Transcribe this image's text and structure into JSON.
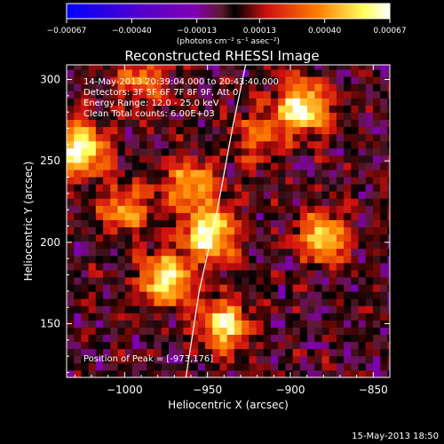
{
  "chart_data": {
    "type": "heatmap",
    "title": "Reconstructed RHESSI Image",
    "xlabel": "Heliocentric X (arcsec)",
    "ylabel": "Heliocentric Y (arcsec)",
    "xlim": [
      -1035,
      -840
    ],
    "ylim": [
      117,
      309
    ],
    "xticks": [
      -1000,
      -950,
      -900,
      -850
    ],
    "xtick_labels": [
      "−1000",
      "−950",
      "−900",
      "−850"
    ],
    "yticks": [
      150,
      200,
      250,
      300
    ],
    "ytick_labels": [
      "150",
      "200",
      "250",
      "300"
    ],
    "colorbar": {
      "tick_values": [
        -0.00067,
        -0.0004,
        -0.00013,
        0.00013,
        0.0004,
        0.00067
      ],
      "tick_labels": [
        "−0.00067",
        "−0.00040",
        "−0.00013",
        "0.00013",
        "0.00040",
        "0.00067"
      ],
      "units_label": "(photons cm⁻² s⁻¹ asec⁻²)",
      "colors": [
        "#0000ff",
        "#5a00c8",
        "#8000b0",
        "#5a1a2a",
        "#000000",
        "#d01010",
        "#ff8000",
        "#ffff60",
        "#ffffff"
      ]
    },
    "annotations": [
      "14-May-2013 20:39:04.000 to 20:43:40.000",
      "Detectors: 3F 5F 6F 7F 8F 9F, Att 0",
      "Energy Range: 12.0 - 25.0 keV",
      "Clean    Total counts: 6.00E+03"
    ],
    "peak_label": "Position of Peak = [-973,176]",
    "peak": [
      -973,
      176
    ],
    "intensity_sources": [
      {
        "x": -1027,
        "y": 257,
        "peak": 0.00067
      },
      {
        "x": -975,
        "y": 177,
        "peak": 0.0006
      },
      {
        "x": -948,
        "y": 205,
        "peak": 0.00065
      },
      {
        "x": -940,
        "y": 150,
        "peak": 0.00055
      },
      {
        "x": -893,
        "y": 283,
        "peak": 0.00065
      },
      {
        "x": -880,
        "y": 203,
        "peak": 0.0005
      },
      {
        "x": -1000,
        "y": 220,
        "peak": 0.0004
      },
      {
        "x": -990,
        "y": 300,
        "peak": 0.00035
      },
      {
        "x": -960,
        "y": 235,
        "peak": 0.00045
      },
      {
        "x": -920,
        "y": 265,
        "peak": 0.0003
      }
    ],
    "limb_curve": [
      [
        -927,
        309
      ],
      [
        -935,
        270
      ],
      [
        -944,
        220
      ],
      [
        -955,
        170
      ],
      [
        -963,
        117
      ]
    ],
    "grid": false,
    "date_footer": "15-May-2013 18:50"
  }
}
